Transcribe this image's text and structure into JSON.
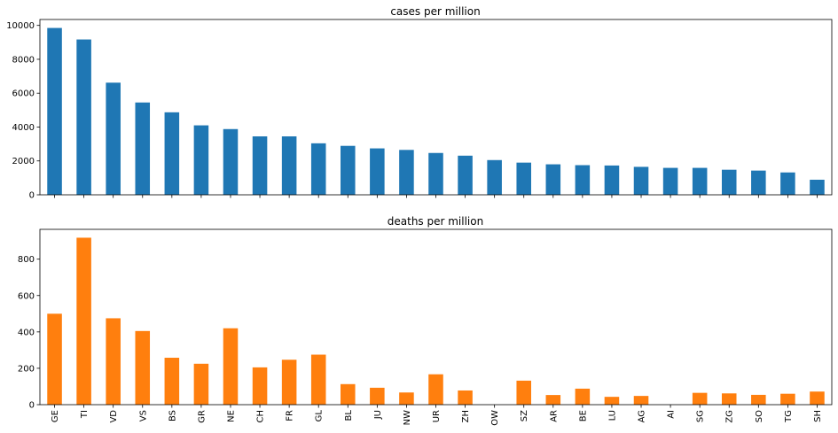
{
  "chart_data": [
    {
      "type": "bar",
      "title": "cases per million",
      "color": "#1f77b4",
      "categories": [
        "GE",
        "TI",
        "VD",
        "VS",
        "BS",
        "GR",
        "NE",
        "CH",
        "FR",
        "GL",
        "BL",
        "JU",
        "NW",
        "UR",
        "ZH",
        "OW",
        "SZ",
        "AR",
        "BE",
        "LU",
        "AG",
        "AI",
        "SG",
        "ZG",
        "SO",
        "TG",
        "SH"
      ],
      "values": [
        9850,
        9170,
        6620,
        5450,
        4870,
        4100,
        3880,
        3450,
        3450,
        3040,
        2890,
        2740,
        2650,
        2470,
        2310,
        2050,
        1900,
        1800,
        1750,
        1730,
        1650,
        1590,
        1590,
        1480,
        1430,
        1320,
        890
      ],
      "yticks": [
        0,
        2000,
        4000,
        6000,
        8000,
        10000
      ],
      "ylim": [
        0,
        10350
      ],
      "show_xtick_labels": false
    },
    {
      "type": "bar",
      "title": "deaths per million",
      "color": "#ff7f0e",
      "categories": [
        "GE",
        "TI",
        "VD",
        "VS",
        "BS",
        "GR",
        "NE",
        "CH",
        "FR",
        "GL",
        "BL",
        "JU",
        "NW",
        "UR",
        "ZH",
        "OW",
        "SZ",
        "AR",
        "BE",
        "LU",
        "AG",
        "AI",
        "SG",
        "ZG",
        "SO",
        "TG",
        "SH"
      ],
      "values": [
        500,
        918,
        475,
        405,
        258,
        225,
        420,
        205,
        247,
        275,
        113,
        93,
        67,
        167,
        78,
        0,
        132,
        53,
        88,
        43,
        48,
        0,
        65,
        62,
        54,
        60,
        72
      ],
      "yticks": [
        0,
        200,
        400,
        600,
        800
      ],
      "ylim": [
        0,
        964
      ],
      "show_xtick_labels": true
    }
  ]
}
